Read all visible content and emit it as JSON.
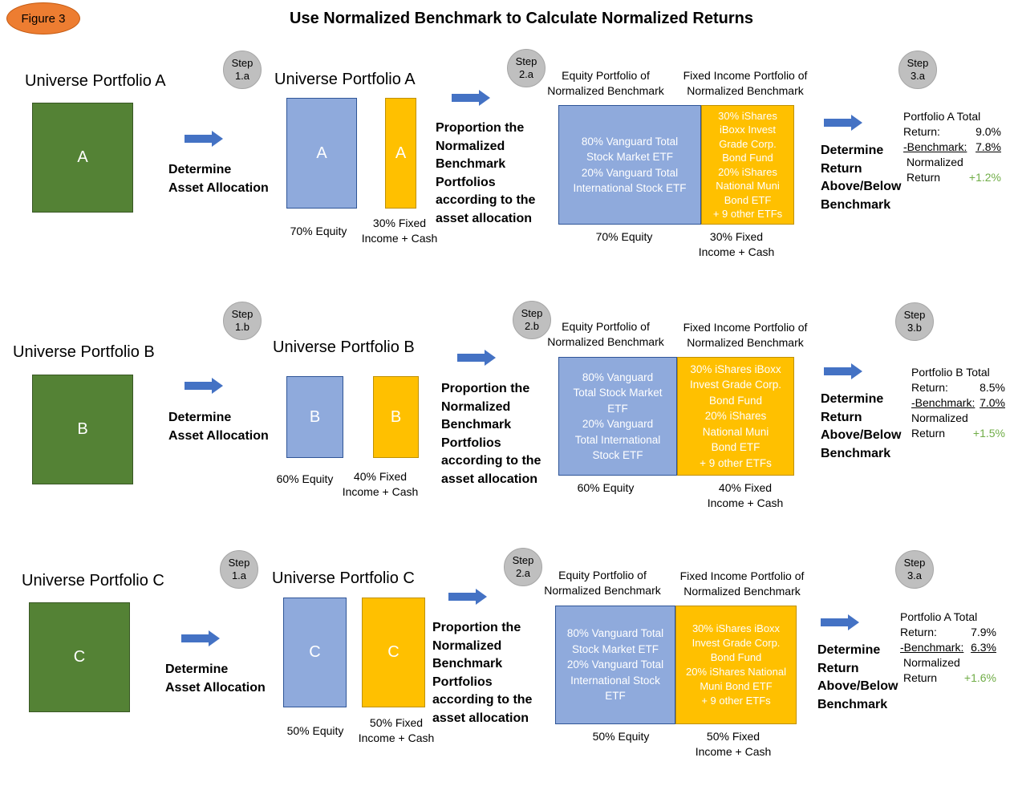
{
  "figure_label": "Figure 3",
  "title": "Use Normalized Benchmark to Calculate Normalized Returns",
  "labels": {
    "determine_alloc_1": "Determine",
    "determine_alloc_2": "Asset Allocation",
    "proportion_lines": [
      "Proportion the",
      "Normalized",
      "Benchmark",
      "Portfolios",
      "according to the",
      "asset allocation"
    ],
    "proportion_lines_b": [
      "Proportion the",
      "Normalized",
      "Benchmark",
      "Portfolios",
      "according to the",
      "asset allocation"
    ],
    "determine_return_lines": [
      "Determine",
      "Return",
      "Above/Below",
      "Benchmark"
    ],
    "equity_header_1": "Equity Portfolio of",
    "equity_header_2": "Normalized Benchmark",
    "fi_header_1": "Fixed Income Portfolio of",
    "fi_header_2": "Normalized Benchmark"
  },
  "rows": {
    "a": {
      "universe_label": "Universe Portfolio A",
      "letter": "A",
      "step1": [
        "Step",
        "1.a"
      ],
      "step2": [
        "Step",
        "2.a"
      ],
      "step3": [
        "Step",
        "3.a"
      ],
      "equity_pct_label": "70% Equity",
      "fi_pct_label_1": "30% Fixed",
      "fi_pct_label_2": "Income + Cash",
      "equity_share": 0.7,
      "bench_equity_lines": [
        "80% Vanguard Total",
        "Stock Market ETF",
        "20% Vanguard Total",
        "International Stock ETF"
      ],
      "bench_fi_lines": [
        "30% iShares",
        "iBoxx Invest",
        "Grade Corp.",
        "Bond Fund",
        "20% iShares",
        "National Muni",
        "Bond ETF",
        "+ 9 other ETFs"
      ],
      "result_title": "Portfolio A Total",
      "return_label": "Return:",
      "return_value": "9.0%",
      "benchmark_label": "-Benchmark:",
      "benchmark_value": "7.8%",
      "normalized_label_1": "Normalized",
      "normalized_label_2": "Return",
      "normalized_value": "+1.2%"
    },
    "b": {
      "universe_label": "Universe Portfolio B",
      "letter": "B",
      "step1": [
        "Step",
        "1.b"
      ],
      "step2": [
        "Step",
        "2.b"
      ],
      "step3": [
        "Step",
        "3.b"
      ],
      "equity_pct_label": "60% Equity",
      "fi_pct_label_1": "40% Fixed",
      "fi_pct_label_2": "Income + Cash",
      "equity_share": 0.6,
      "bench_equity_lines": [
        "80% Vanguard",
        "Total  Stock Market",
        "ETF",
        "20% Vanguard",
        "Total International",
        "Stock ETF"
      ],
      "bench_fi_lines": [
        "30% iShares iBoxx",
        "Invest Grade Corp.",
        "Bond Fund",
        "20% iShares",
        "National Muni",
        "Bond ETF",
        "+ 9 other  ETFs"
      ],
      "result_title": "Portfolio  B Total",
      "return_label": "Return:",
      "return_value": "8.5%",
      "benchmark_label": "-Benchmark:",
      "benchmark_value": "7.0%",
      "normalized_label_1": "Normalized",
      "normalized_label_2": "Return",
      "normalized_value": "+1.5%"
    },
    "c": {
      "universe_label": "Universe Portfolio C",
      "letter": "C",
      "step1": [
        "Step",
        "1.a"
      ],
      "step2": [
        "Step",
        "2.a"
      ],
      "step3": [
        "Step",
        "3.a"
      ],
      "equity_pct_label": "50% Equity",
      "fi_pct_label_1": "50% Fixed",
      "fi_pct_label_2": "Income + Cash",
      "equity_share": 0.5,
      "bench_equity_lines": [
        "80% Vanguard Total",
        "Stock Market ETF",
        "20% Vanguard Total",
        "International Stock",
        "ETF"
      ],
      "bench_fi_lines": [
        "30% iShares iBoxx",
        "Invest Grade Corp.",
        "Bond Fund",
        "20% iShares National",
        "Muni Bond ETF",
        "+ 9 other ETFs"
      ],
      "result_title": "Portfolio A Total",
      "return_label": "Return:",
      "return_value": "7.9%",
      "benchmark_label": "-Benchmark:",
      "benchmark_value": "6.3%",
      "normalized_label_1": "Normalized",
      "normalized_label_2": "Return",
      "normalized_value": "+1.6%"
    }
  },
  "colors": {
    "portfolio_green": "#548235",
    "equity_blue": "#8faadc",
    "fixed_income_gold": "#ffc000",
    "arrow_blue": "#4472c4",
    "step_gray": "#bfbfbf",
    "badge_orange": "#ed7d31",
    "normalized_green": "#70ad47"
  }
}
